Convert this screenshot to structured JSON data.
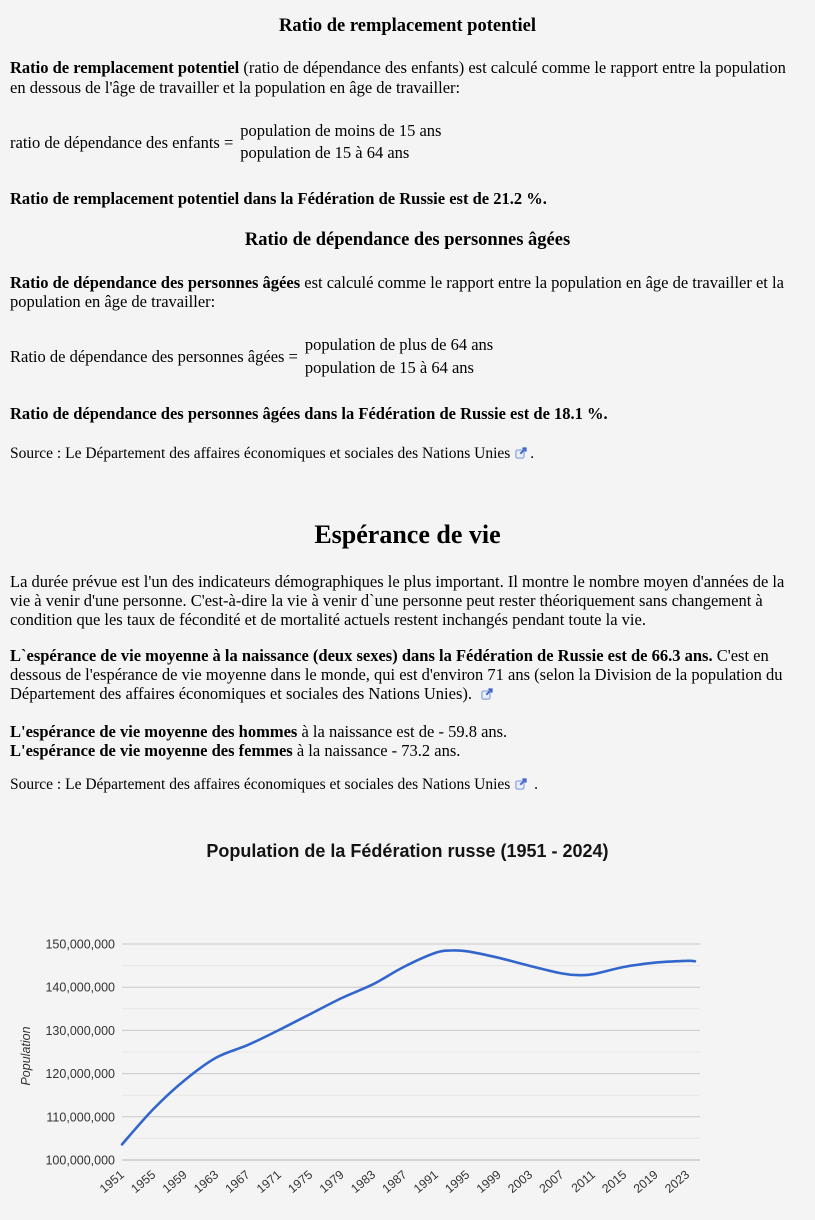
{
  "page": {
    "background": "#f4f4f4",
    "link_icon_color": "#3f63c8"
  },
  "icons": {
    "external_link": "box-with-arrow-up-right"
  },
  "replacement_section": {
    "heading": "Ratio de remplacement potentiel",
    "para_bold": "Ratio de remplacement potentiel",
    "para_rest": " (ratio de dépendance des enfants) est calculé comme le rapport entre la population en dessous de l'âge de travailler et la population en âge de travailler:",
    "formula_label": "ratio de dépendance des enfants =",
    "formula_numerator": "population de moins de 15 ans",
    "formula_denominator": "population de 15 à 64 ans",
    "result": "Ratio de remplacement potentiel dans la Fédération de Russie est de 21.2 %."
  },
  "elderly_section": {
    "heading": "Ratio de dépendance des personnes âgées",
    "para_bold": "Ratio de dépendance des personnes âgées",
    "para_rest": " est calculé comme le rapport entre la population en âge de travailler et la population en âge de travailler:",
    "formula_label": "Ratio de dépendance des personnes âgées =",
    "formula_numerator": "population de plus de 64 ans",
    "formula_denominator": "population de 15 à 64 ans",
    "result": "Ratio de dépendance des personnes âgées dans la Fédération de Russie est de 18.1 %.",
    "source_text": "Source : Le Département des affaires économiques et sociales des Nations Unies",
    "source_period": "."
  },
  "life_section": {
    "heading": "Espérance de vie",
    "para1": "La durée prévue est l'un des indicateurs démographiques le plus important. Il montre le nombre moyen d'années de la vie à venir d'une personne. C'est-à-dire la vie à venir d`une personne peut rester théoriquement sans changement à condition que les taux de fécondité et de mortalité actuels restent inchangés pendant toute la vie.",
    "para2_bold": "L`espérance de vie moyenne à la naissance (deux sexes) dans la Fédération de Russie est de 66.3 ans.",
    "para2_rest": " C'est en dessous de l'espérance de vie moyenne dans le monde, qui est d'environ 71 ans (selon la Division de la population du Département des affaires économiques et sociales des Nations Unies). ",
    "men_bold": "L'espérance de vie moyenne des hommes",
    "men_rest": " à la naissance est de - 59.8 ans.",
    "women_bold": "L'espérance de vie moyenne des femmes",
    "women_rest": " à la naissance - 73.2 ans.",
    "source_text": "Source : Le Département des affaires économiques et sociales des Nations Unies",
    "source_period": " ."
  },
  "chart_data": {
    "type": "line",
    "title": "Population de la Fédération russe (1951 - 2024)",
    "xlabel": "",
    "ylabel": "Population",
    "legend": "none",
    "grid": "horizontal-major-and-minor",
    "line_color": "#3366cc",
    "xlim": [
      1951,
      2024
    ],
    "ylim": [
      100000000,
      150000000
    ],
    "x": [
      1951,
      1955,
      1959,
      1963,
      1967,
      1971,
      1975,
      1979,
      1983,
      1987,
      1991,
      1993,
      1995,
      1999,
      2003,
      2007,
      2009,
      2011,
      2015,
      2019,
      2023,
      2024
    ],
    "y": [
      103600000,
      111800000,
      118500000,
      123700000,
      126600000,
      130100000,
      133800000,
      137500000,
      140700000,
      144800000,
      148000000,
      148500000,
      148300000,
      146800000,
      144900000,
      143200000,
      142800000,
      143000000,
      144700000,
      145700000,
      146100000,
      146000000
    ],
    "x_tick_labels": [
      "1951",
      "1955",
      "1959",
      "1963",
      "1967",
      "1971",
      "1975",
      "1979",
      "1983",
      "1987",
      "1991",
      "1995",
      "1999",
      "2003",
      "2007",
      "2011",
      "2015",
      "2019",
      "2023"
    ],
    "y_tick_values": [
      100000000,
      110000000,
      120000000,
      130000000,
      140000000,
      150000000
    ],
    "y_tick_labels": [
      "100,000,000",
      "110,000,000",
      "120,000,000",
      "130,000,000",
      "140,000,000",
      "150,000,000"
    ],
    "y_minor_step": 5000000
  }
}
